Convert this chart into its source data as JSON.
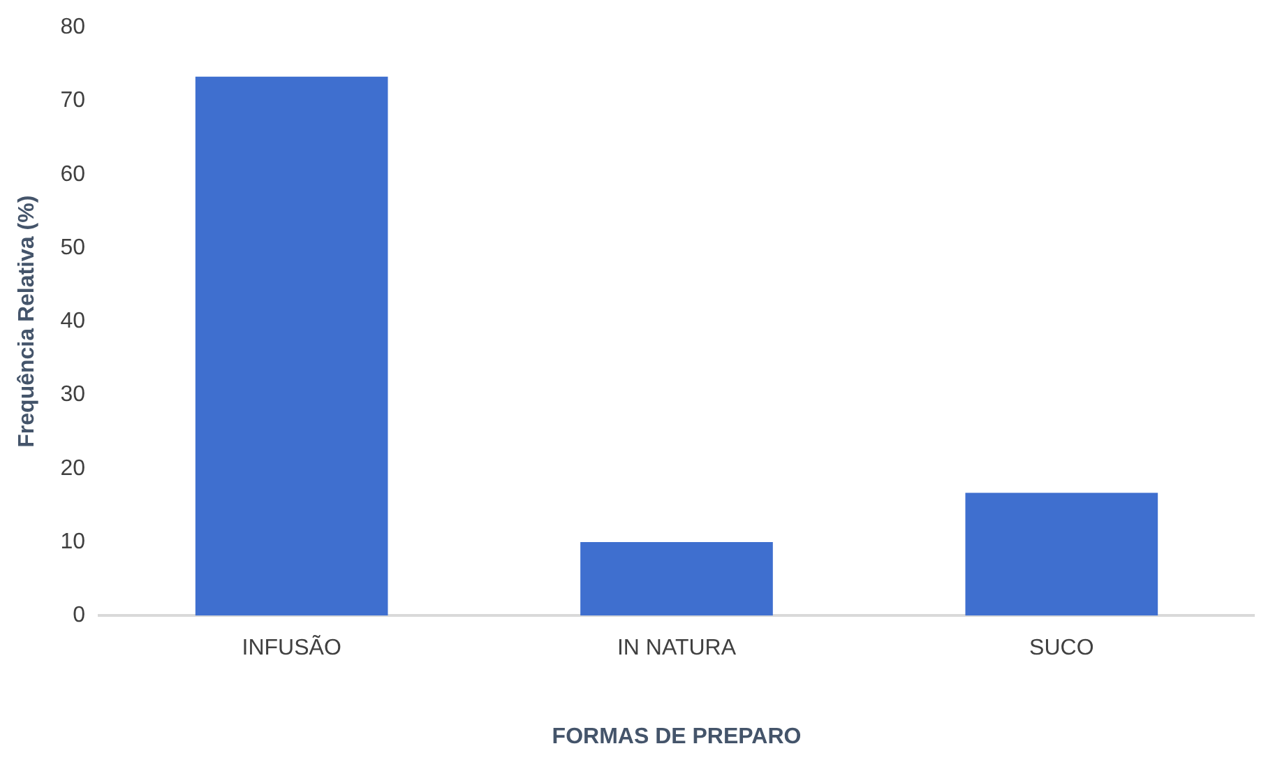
{
  "chart_data": {
    "type": "bar",
    "xlabel": "FORMAS DE PREPARO",
    "ylabel": "Frequência Relativa (%)",
    "categories": [
      "INFUSÃO",
      "IN NATURA",
      "SUCO"
    ],
    "values": [
      73.3,
      10,
      16.7
    ],
    "color": "#3f6fcf",
    "ylim": [
      0,
      80
    ],
    "yticks": [
      0,
      10,
      20,
      30,
      40,
      50,
      60,
      70,
      80
    ],
    "grid": false
  }
}
